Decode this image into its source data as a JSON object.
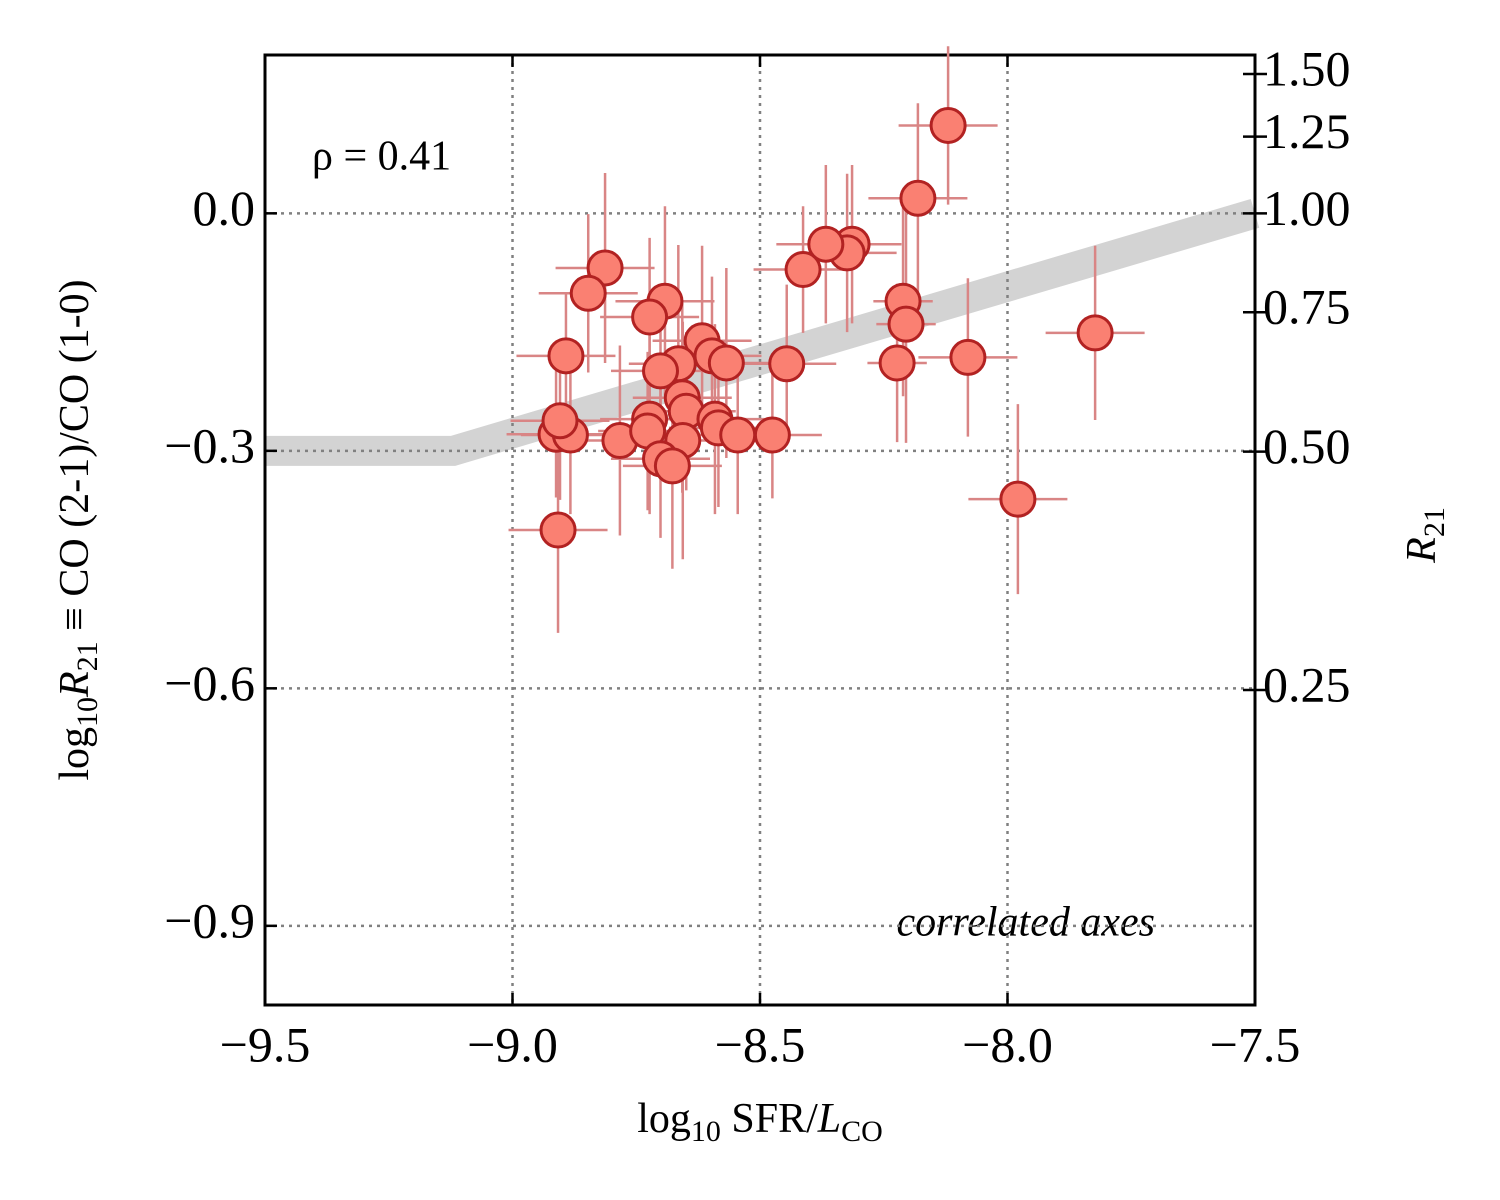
{
  "chart_data": {
    "type": "scatter",
    "xlabel": [
      "log",
      "10",
      " SFR/",
      "L",
      "CO"
    ],
    "ylabel": [
      "log",
      "10",
      "R",
      "21",
      " ≡ CO (2-1)/CO (1-0)"
    ],
    "y2label": [
      "R",
      "21"
    ],
    "annotations": [
      "ρ = 0.41",
      "correlated axes"
    ],
    "xlim": [
      -9.5,
      -7.5
    ],
    "ylim": [
      -1.0,
      0.2
    ],
    "y2lim": [
      0.1,
      1.585
    ],
    "y2scale": "log",
    "grid": true,
    "xticks": [
      {
        "value": -9.5,
        "label": "−9.5"
      },
      {
        "value": -9.0,
        "label": "−9.0"
      },
      {
        "value": -8.5,
        "label": "−8.5"
      },
      {
        "value": -8.0,
        "label": "−8.0"
      },
      {
        "value": -7.5,
        "label": "−7.5"
      }
    ],
    "yticks": [
      {
        "value": 0.0,
        "label": "0.0"
      },
      {
        "value": -0.3,
        "label": "−0.3"
      },
      {
        "value": -0.6,
        "label": "−0.6"
      },
      {
        "value": -0.9,
        "label": "−0.9"
      }
    ],
    "y2ticks": [
      {
        "value": 1.5,
        "label": "1.50"
      },
      {
        "value": 1.25,
        "label": "1.25"
      },
      {
        "value": 1.0,
        "label": "1.00"
      },
      {
        "value": 0.75,
        "label": "0.75"
      },
      {
        "value": 0.5,
        "label": "0.50"
      },
      {
        "value": 0.25,
        "label": "0.25"
      }
    ],
    "band": {
      "x": [
        -9.5,
        -9.12,
        -7.5
      ],
      "y": [
        -0.3,
        -0.3,
        0.0
      ],
      "color": "#d3d3d3"
    },
    "series": [
      {
        "color": "#fa8072",
        "edgecolor": "#b22222",
        "errcolor": "#d98585",
        "x": [
          -8.12,
          -8.181,
          -8.314,
          -8.324,
          -8.367,
          -8.413,
          -8.211,
          -8.205,
          -8.223,
          -8.08,
          -7.823,
          -7.979,
          -8.446,
          -8.475,
          -8.813,
          -8.847,
          -8.692,
          -8.723,
          -8.892,
          -8.617,
          -8.597,
          -8.568,
          -8.665,
          -8.701,
          -8.657,
          -8.649,
          -8.912,
          -8.883,
          -8.904,
          -8.783,
          -8.723,
          -8.727,
          -8.656,
          -8.591,
          -8.584,
          -8.545,
          -8.701,
          -8.677,
          -8.908
        ],
        "values": [
          0.111,
          0.019,
          -0.039,
          -0.05,
          -0.039,
          -0.071,
          -0.111,
          -0.14,
          -0.189,
          -0.182,
          -0.151,
          -0.361,
          -0.19,
          -0.28,
          -0.069,
          -0.101,
          -0.111,
          -0.131,
          -0.18,
          -0.161,
          -0.18,
          -0.189,
          -0.19,
          -0.199,
          -0.233,
          -0.25,
          -0.279,
          -0.28,
          -0.262,
          -0.287,
          -0.26,
          -0.275,
          -0.287,
          -0.26,
          -0.271,
          -0.28,
          -0.31,
          -0.319,
          -0.4
        ],
        "xerr": [
          0.1,
          0.1,
          0.1,
          0.1,
          0.1,
          0.1,
          0.06,
          0.06,
          0.06,
          0.1,
          0.1,
          0.1,
          0.1,
          0.1,
          0.1,
          0.1,
          0.1,
          0.1,
          0.1,
          0.1,
          0.1,
          0.1,
          0.1,
          0.1,
          0.1,
          0.1,
          0.1,
          0.1,
          0.1,
          0.1,
          0.1,
          0.1,
          0.1,
          0.1,
          0.1,
          0.1,
          0.1,
          0.1,
          0.1
        ],
        "yerr": [
          0.1,
          0.12,
          0.1,
          0.1,
          0.1,
          0.08,
          0.12,
          0.15,
          0.1,
          0.1,
          0.11,
          0.12,
          0.1,
          0.08,
          0.12,
          0.1,
          0.12,
          0.1,
          0.08,
          0.12,
          0.1,
          0.12,
          0.15,
          0.1,
          0.12,
          0.1,
          0.08,
          0.1,
          0.1,
          0.12,
          0.12,
          0.1,
          0.15,
          0.12,
          0.1,
          0.1,
          0.1,
          0.13,
          0.13
        ]
      }
    ]
  }
}
